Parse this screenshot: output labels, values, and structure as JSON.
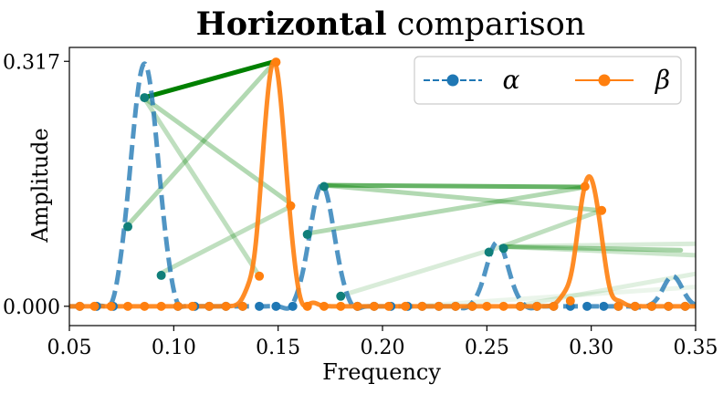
{
  "chart_data": {
    "type": "line",
    "title_bold": "Horizontal",
    "title_rest": " comparison",
    "xlabel": "Frequency",
    "ylabel": "Amplitude",
    "xlim": [
      0.05,
      0.35
    ],
    "ylim": [
      -0.025,
      0.335
    ],
    "xticks": [
      0.05,
      0.1,
      0.15,
      0.2,
      0.25,
      0.3,
      0.35
    ],
    "xtick_labels": [
      "0.05",
      "0.10",
      "0.15",
      "0.20",
      "0.25",
      "0.30",
      "0.35"
    ],
    "yticks": [
      0.0,
      0.317
    ],
    "ytick_labels": [
      "0.000",
      "0.317"
    ],
    "legend_position": "top-right",
    "series": [
      {
        "name": "α",
        "color": "#1f77b4",
        "style": "dashed",
        "peaks": [
          {
            "center": 0.086,
            "amp": 0.314,
            "width": 0.0065
          },
          {
            "center": 0.171,
            "amp": 0.157,
            "width": 0.0058
          },
          {
            "center": 0.255,
            "amp": 0.083,
            "width": 0.0052
          },
          {
            "center": 0.339,
            "amp": 0.039,
            "width": 0.0045
          }
        ],
        "markers": [
          {
            "x": 0.055,
            "y": 0.0
          },
          {
            "x": 0.063,
            "y": 0.0
          },
          {
            "x": 0.071,
            "y": 0.0
          },
          {
            "x": 0.078,
            "y": 0.103
          },
          {
            "x": 0.086,
            "y": 0.27
          },
          {
            "x": 0.094,
            "y": 0.04
          },
          {
            "x": 0.102,
            "y": 0.0
          },
          {
            "x": 0.11,
            "y": 0.0
          },
          {
            "x": 0.117,
            "y": 0.0
          },
          {
            "x": 0.125,
            "y": 0.0
          },
          {
            "x": 0.133,
            "y": 0.0
          },
          {
            "x": 0.141,
            "y": 0.0
          },
          {
            "x": 0.149,
            "y": 0.0
          },
          {
            "x": 0.157,
            "y": 0.0
          },
          {
            "x": 0.164,
            "y": 0.093
          },
          {
            "x": 0.172,
            "y": 0.155
          },
          {
            "x": 0.18,
            "y": 0.013
          },
          {
            "x": 0.188,
            "y": 0.0
          },
          {
            "x": 0.196,
            "y": 0.0
          },
          {
            "x": 0.204,
            "y": 0.0
          },
          {
            "x": 0.212,
            "y": 0.0
          },
          {
            "x": 0.219,
            "y": 0.0
          },
          {
            "x": 0.227,
            "y": 0.0
          },
          {
            "x": 0.235,
            "y": 0.0
          },
          {
            "x": 0.243,
            "y": 0.0
          },
          {
            "x": 0.251,
            "y": 0.07
          },
          {
            "x": 0.258,
            "y": 0.075
          },
          {
            "x": 0.266,
            "y": 0.0
          },
          {
            "x": 0.274,
            "y": 0.0
          },
          {
            "x": 0.282,
            "y": 0.0
          },
          {
            "x": 0.29,
            "y": 0.0
          },
          {
            "x": 0.298,
            "y": 0.0
          },
          {
            "x": 0.306,
            "y": 0.0
          },
          {
            "x": 0.313,
            "y": 0.0
          },
          {
            "x": 0.321,
            "y": 0.0
          },
          {
            "x": 0.329,
            "y": 0.0
          },
          {
            "x": 0.337,
            "y": 0.0
          },
          {
            "x": 0.345,
            "y": 0.0
          }
        ]
      },
      {
        "name": "β",
        "color": "#ff7f0e",
        "style": "solid",
        "peaks": [
          {
            "center": 0.148,
            "amp": 0.317,
            "width": 0.0055
          },
          {
            "center": 0.299,
            "amp": 0.168,
            "width": 0.0055
          }
        ],
        "ripples": [
          {
            "center": 0.135,
            "amp": 0.006
          },
          {
            "center": 0.139,
            "amp": -0.01
          },
          {
            "center": 0.161,
            "amp": -0.012
          },
          {
            "center": 0.167,
            "amp": 0.004
          },
          {
            "center": 0.286,
            "amp": 0.004
          },
          {
            "center": 0.291,
            "amp": -0.008
          },
          {
            "center": 0.309,
            "amp": -0.01
          },
          {
            "center": 0.314,
            "amp": 0.003
          }
        ],
        "markers": [
          {
            "x": 0.055,
            "y": 0.0
          },
          {
            "x": 0.062,
            "y": 0.0
          },
          {
            "x": 0.07,
            "y": 0.0
          },
          {
            "x": 0.078,
            "y": 0.0
          },
          {
            "x": 0.086,
            "y": 0.0
          },
          {
            "x": 0.094,
            "y": 0.0
          },
          {
            "x": 0.102,
            "y": 0.0
          },
          {
            "x": 0.109,
            "y": 0.0
          },
          {
            "x": 0.117,
            "y": 0.0
          },
          {
            "x": 0.125,
            "y": 0.0
          },
          {
            "x": 0.133,
            "y": 0.0
          },
          {
            "x": 0.141,
            "y": 0.039
          },
          {
            "x": 0.149,
            "y": 0.316
          },
          {
            "x": 0.156,
            "y": 0.13
          },
          {
            "x": 0.164,
            "y": 0.0
          },
          {
            "x": 0.172,
            "y": 0.0
          },
          {
            "x": 0.18,
            "y": 0.0
          },
          {
            "x": 0.188,
            "y": 0.0
          },
          {
            "x": 0.196,
            "y": 0.0
          },
          {
            "x": 0.203,
            "y": 0.0
          },
          {
            "x": 0.211,
            "y": 0.0
          },
          {
            "x": 0.219,
            "y": 0.0
          },
          {
            "x": 0.227,
            "y": 0.0
          },
          {
            "x": 0.235,
            "y": 0.0
          },
          {
            "x": 0.243,
            "y": 0.0
          },
          {
            "x": 0.25,
            "y": 0.0
          },
          {
            "x": 0.258,
            "y": 0.0
          },
          {
            "x": 0.266,
            "y": 0.0
          },
          {
            "x": 0.274,
            "y": 0.0
          },
          {
            "x": 0.282,
            "y": 0.0
          },
          {
            "x": 0.29,
            "y": 0.007
          },
          {
            "x": 0.297,
            "y": 0.155
          },
          {
            "x": 0.305,
            "y": 0.124
          },
          {
            "x": 0.313,
            "y": 0.0
          },
          {
            "x": 0.321,
            "y": 0.0
          },
          {
            "x": 0.329,
            "y": 0.0
          },
          {
            "x": 0.337,
            "y": 0.0
          },
          {
            "x": 0.345,
            "y": 0.0
          }
        ]
      }
    ],
    "comparison_lines": [
      {
        "x1": 0.0857,
        "y1": 0.27,
        "x2": 0.1486,
        "y2": 0.317,
        "alpha": 1.0
      },
      {
        "x1": 0.1714,
        "y1": 0.1567,
        "x2": 0.2971,
        "y2": 0.1543,
        "alpha": 0.6
      },
      {
        "x1": 0.2571,
        "y1": 0.0773,
        "x2": 0.3429,
        "y2": 0.0726,
        "alpha": 0.35
      },
      {
        "x1": 0.0857,
        "y1": 0.27,
        "x2": 0.1571,
        "y2": 0.1307,
        "alpha": 0.3
      },
      {
        "x1": 0.0779,
        "y1": 0.1046,
        "x2": 0.1486,
        "y2": 0.317,
        "alpha": 0.3
      },
      {
        "x1": 0.0935,
        "y1": 0.0423,
        "x2": 0.1571,
        "y2": 0.1307,
        "alpha": 0.25
      },
      {
        "x1": 0.0857,
        "y1": 0.27,
        "x2": 0.141,
        "y2": 0.039,
        "alpha": 0.25
      },
      {
        "x1": 0.1714,
        "y1": 0.1567,
        "x2": 0.3048,
        "y2": 0.124,
        "alpha": 0.3
      },
      {
        "x1": 0.1636,
        "y1": 0.094,
        "x2": 0.2971,
        "y2": 0.1543,
        "alpha": 0.3
      },
      {
        "x1": 0.2571,
        "y1": 0.0773,
        "x2": 0.3048,
        "y2": 0.124,
        "alpha": 0.25
      },
      {
        "x1": 0.1792,
        "y1": 0.013,
        "x2": 0.2571,
        "y2": 0.0773,
        "alpha": 0.15
      },
      {
        "x1": 0.2571,
        "y1": 0.0773,
        "x2": 0.35,
        "y2": 0.081,
        "alpha": 0.15
      },
      {
        "x1": 0.2571,
        "y1": 0.0773,
        "x2": 0.35,
        "y2": 0.066,
        "alpha": 0.2
      },
      {
        "x1": 0.265,
        "y1": 0.001,
        "x2": 0.35,
        "y2": 0.042,
        "alpha": 0.12
      },
      {
        "x1": 0.22,
        "y1": 0.001,
        "x2": 0.35,
        "y2": 0.025,
        "alpha": 0.08
      }
    ],
    "comparison_color": "#008000"
  }
}
